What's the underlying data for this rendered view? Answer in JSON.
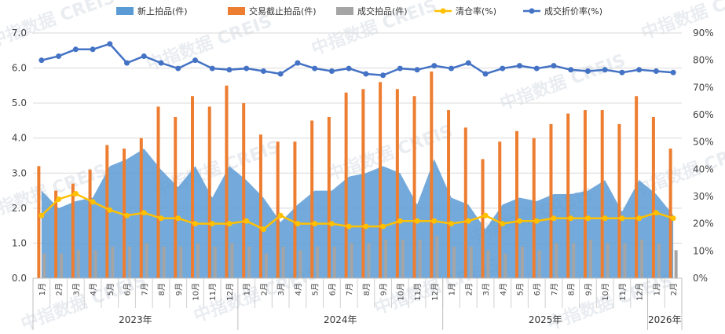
{
  "chart_data": {
    "type": "bar",
    "categories": [
      "1月",
      "2月",
      "3月",
      "4月",
      "5月",
      "6月",
      "7月",
      "8月",
      "9月",
      "10月",
      "11月",
      "12月",
      "1月",
      "2月",
      "3月",
      "4月",
      "5月",
      "6月",
      "7月",
      "8月",
      "9月",
      "10月",
      "11月",
      "12月",
      "1月",
      "2月",
      "3月",
      "4月",
      "5月",
      "6月",
      "7月",
      "8月",
      "9月",
      "10月",
      "11月",
      "12月",
      "1月",
      "2月"
    ],
    "year_groups": [
      {
        "label": "2023年",
        "count": 12
      },
      {
        "label": "2024年",
        "count": 12
      },
      {
        "label": "2025年",
        "count": 12
      },
      {
        "label": "2026年",
        "count": 2
      }
    ],
    "series": [
      {
        "name": "新上拍品(件)",
        "type": "area",
        "axis": "left",
        "color": "#5b9bd5",
        "values": [
          2.5,
          2.0,
          2.2,
          2.3,
          3.2,
          3.4,
          3.7,
          3.1,
          2.6,
          3.2,
          2.3,
          3.2,
          2.8,
          2.3,
          1.6,
          2.1,
          2.5,
          2.5,
          2.9,
          3.0,
          3.2,
          3.0,
          2.1,
          3.4,
          2.3,
          2.1,
          1.4,
          2.1,
          2.3,
          2.2,
          2.4,
          2.4,
          2.5,
          2.8,
          1.9,
          2.8,
          2.4,
          1.8
        ]
      },
      {
        "name": "交易截止拍品(件)",
        "type": "bar",
        "axis": "left",
        "color": "#ed7d31",
        "values": [
          3.2,
          2.5,
          2.7,
          3.1,
          3.8,
          3.7,
          4.0,
          4.9,
          4.6,
          5.2,
          4.9,
          5.5,
          5.0,
          4.1,
          3.9,
          3.9,
          4.5,
          4.6,
          5.3,
          5.4,
          5.6,
          5.4,
          5.2,
          5.9,
          4.8,
          4.3,
          3.4,
          3.9,
          4.2,
          4.0,
          4.4,
          4.7,
          4.8,
          4.8,
          4.4,
          5.2,
          4.6,
          3.7
        ]
      },
      {
        "name": "成交拍品(件)",
        "type": "bar",
        "axis": "left",
        "color": "#a5a5a5",
        "values": [
          0.7,
          0.7,
          0.8,
          0.8,
          0.9,
          0.9,
          1.0,
          0.9,
          0.9,
          1.0,
          0.9,
          1.0,
          0.9,
          0.7,
          0.9,
          0.8,
          0.9,
          0.9,
          1.0,
          1.0,
          1.1,
          1.1,
          1.1,
          1.2,
          0.9,
          0.9,
          0.8,
          0.7,
          0.9,
          0.8,
          1.0,
          1.0,
          1.1,
          1.0,
          1.0,
          1.1,
          1.0,
          0.8
        ]
      },
      {
        "name": "清仓率(%)",
        "type": "line",
        "axis": "right",
        "color": "#ffc000",
        "values": [
          23,
          29,
          31,
          28,
          25,
          23,
          24,
          22,
          22,
          20,
          20,
          20,
          21,
          18,
          23,
          20,
          20,
          20,
          19,
          19,
          19,
          21,
          21,
          21,
          20,
          21,
          23,
          20,
          21,
          21,
          22,
          22,
          22,
          22,
          22,
          22,
          24,
          22
        ]
      },
      {
        "name": "成交折价率(%)",
        "type": "line",
        "axis": "right",
        "color": "#4472c4",
        "values": [
          80,
          81.5,
          84,
          84,
          86,
          79,
          81.5,
          79,
          77,
          80,
          77,
          76.5,
          77,
          76,
          75,
          79,
          77,
          76,
          77,
          75,
          74.5,
          77,
          76.5,
          78,
          77,
          79,
          75,
          77,
          78,
          77,
          78,
          76.5,
          76,
          76.5,
          75.5,
          76.5,
          76,
          75.5
        ]
      }
    ],
    "left_axis": {
      "ylim": [
        0,
        7.0
      ],
      "ticks": [
        "0.0",
        "1.0",
        "2.0",
        "3.0",
        "4.0",
        "5.0",
        "6.0",
        "7.0"
      ]
    },
    "right_axis": {
      "ylim": [
        0,
        90
      ],
      "ticks": [
        "0%",
        "10%",
        "20%",
        "30%",
        "40%",
        "50%",
        "60%",
        "70%",
        "80%",
        "90%"
      ]
    },
    "legend_position": "top",
    "grid": "horizontal",
    "watermark": "中指数据 CREIS"
  }
}
